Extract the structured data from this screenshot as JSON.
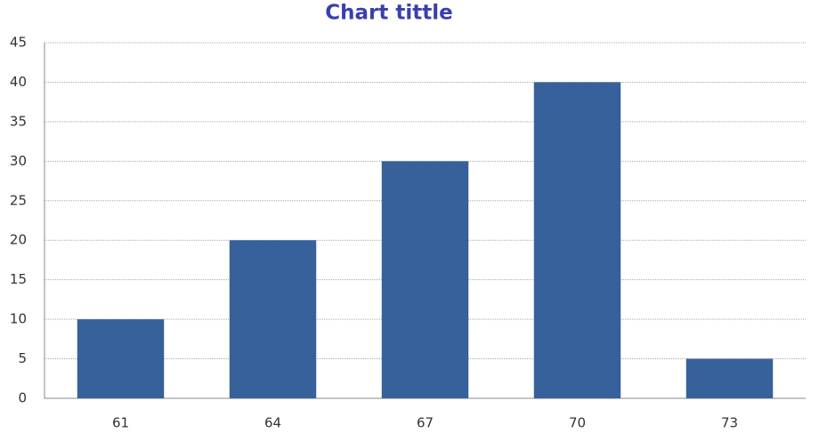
{
  "chart_data": {
    "type": "bar",
    "title": "Chart tittle",
    "categories": [
      "61",
      "64",
      "67",
      "70",
      "73"
    ],
    "values": [
      10,
      20,
      30,
      40,
      5
    ],
    "color": "#36619a",
    "ylim": [
      0,
      45
    ],
    "yticks": [
      0,
      5,
      10,
      15,
      20,
      25,
      30,
      35,
      40,
      45
    ],
    "grid": true
  }
}
